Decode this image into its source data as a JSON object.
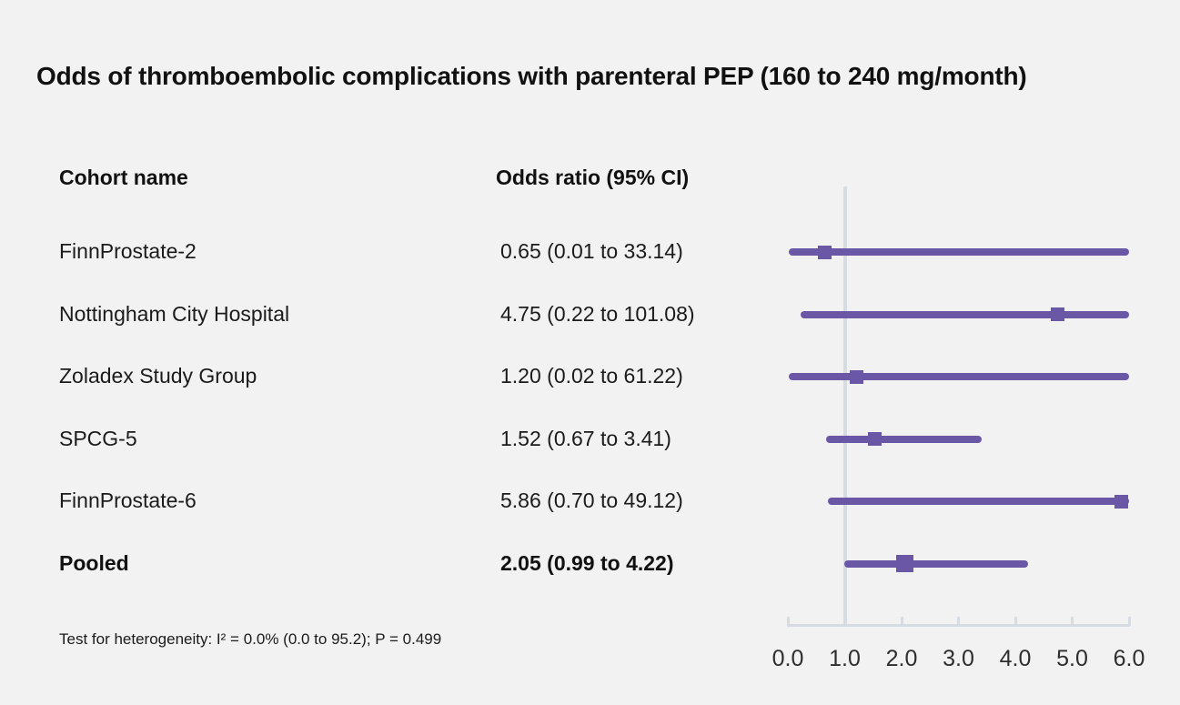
{
  "title": "Odds of thromboembolic complications with parenteral PEP (160 to 240 mg/month)",
  "columns": {
    "cohort": "Cohort name",
    "odds_ratio": "Odds ratio (95% CI)"
  },
  "footnote": "Test for heterogeneity: I² = 0.0% (0.0 to 95.2); P = 0.499",
  "colors": {
    "accent_purple": "#6a58a6",
    "axis_gray": "#d7dbe2",
    "background": "#f2f2f2",
    "text": "#1b1b1b"
  },
  "chart_data": {
    "type": "scatter",
    "subtype": "forest-plot",
    "title": "Odds of thromboembolic complications with parenteral PEP (160 to 240 mg/month)",
    "xlabel": "",
    "ylabel": "",
    "xlim": [
      0.0,
      6.0
    ],
    "reference_line_x": 1.0,
    "grid": false,
    "xticks": [
      {
        "value": 0,
        "label": "0.0"
      },
      {
        "value": 1,
        "label": "1.0"
      },
      {
        "value": 2,
        "label": "2.0"
      },
      {
        "value": 3,
        "label": "3.0"
      },
      {
        "value": 4,
        "label": "4.0"
      },
      {
        "value": 5,
        "label": "5.0"
      },
      {
        "value": 6,
        "label": "6.0"
      }
    ],
    "rows": [
      {
        "label": "FinnProstate-2",
        "display": "0.65 (0.01 to 33.14)",
        "or": 0.65,
        "ci_low": 0.01,
        "ci_high": 33.14,
        "pooled": false
      },
      {
        "label": "Nottingham City Hospital",
        "display": "4.75 (0.22 to 101.08)",
        "or": 4.75,
        "ci_low": 0.22,
        "ci_high": 101.08,
        "pooled": false
      },
      {
        "label": "Zoladex Study Group",
        "display": "1.20 (0.02 to 61.22)",
        "or": 1.2,
        "ci_low": 0.02,
        "ci_high": 61.22,
        "pooled": false
      },
      {
        "label": "SPCG-5",
        "display": "1.52 (0.67 to 3.41)",
        "or": 1.52,
        "ci_low": 0.67,
        "ci_high": 3.41,
        "pooled": false
      },
      {
        "label": "FinnProstate-6",
        "display": "5.86 (0.70 to 49.12)",
        "or": 5.86,
        "ci_low": 0.7,
        "ci_high": 49.12,
        "pooled": false
      },
      {
        "label": "Pooled",
        "display": "2.05 (0.99 to 4.22)",
        "or": 2.05,
        "ci_low": 0.99,
        "ci_high": 4.22,
        "pooled": true
      }
    ]
  }
}
